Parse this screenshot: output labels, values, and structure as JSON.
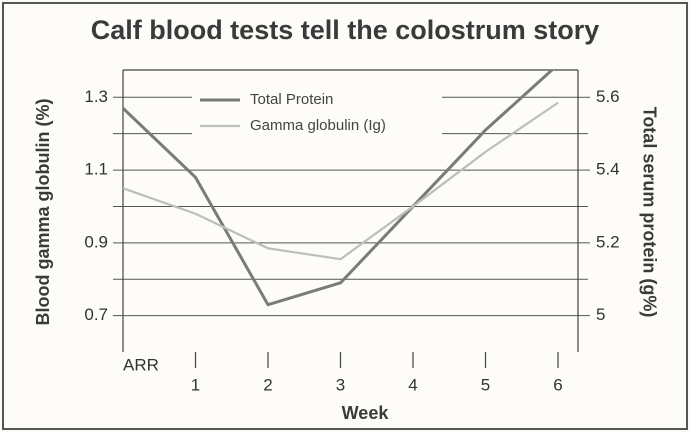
{
  "chart_data": {
    "type": "line",
    "title": "Calf blood tests tell the colostrum story",
    "xlabel": "Week",
    "ylabel": "Blood gamma globulin (%)",
    "y2label": "Total serum protein (g%)",
    "categories": [
      "ARR",
      "1",
      "2",
      "3",
      "4",
      "5",
      "6"
    ],
    "series": [
      {
        "name": "Total Protein",
        "color": "#7a7a7a",
        "axis": "y2",
        "values": [
          5.57,
          5.38,
          5.03,
          5.09,
          5.3,
          5.51,
          5.69
        ]
      },
      {
        "name": "Gamma globulin (Ig)",
        "color": "#bdbdbd",
        "values": [
          1.05,
          0.98,
          0.885,
          0.855,
          1.0,
          1.15,
          1.285
        ]
      }
    ],
    "ylim": [
      0.6,
      1.375
    ],
    "yticks": [
      0.7,
      0.9,
      1.1,
      1.3
    ],
    "minor_yticks": [
      0.8,
      1.0,
      1.2
    ],
    "y2lim": [
      4.9,
      5.675
    ],
    "y2ticks": [
      5.0,
      5.2,
      5.4,
      5.6
    ],
    "grid": true,
    "legend": "top-left"
  }
}
